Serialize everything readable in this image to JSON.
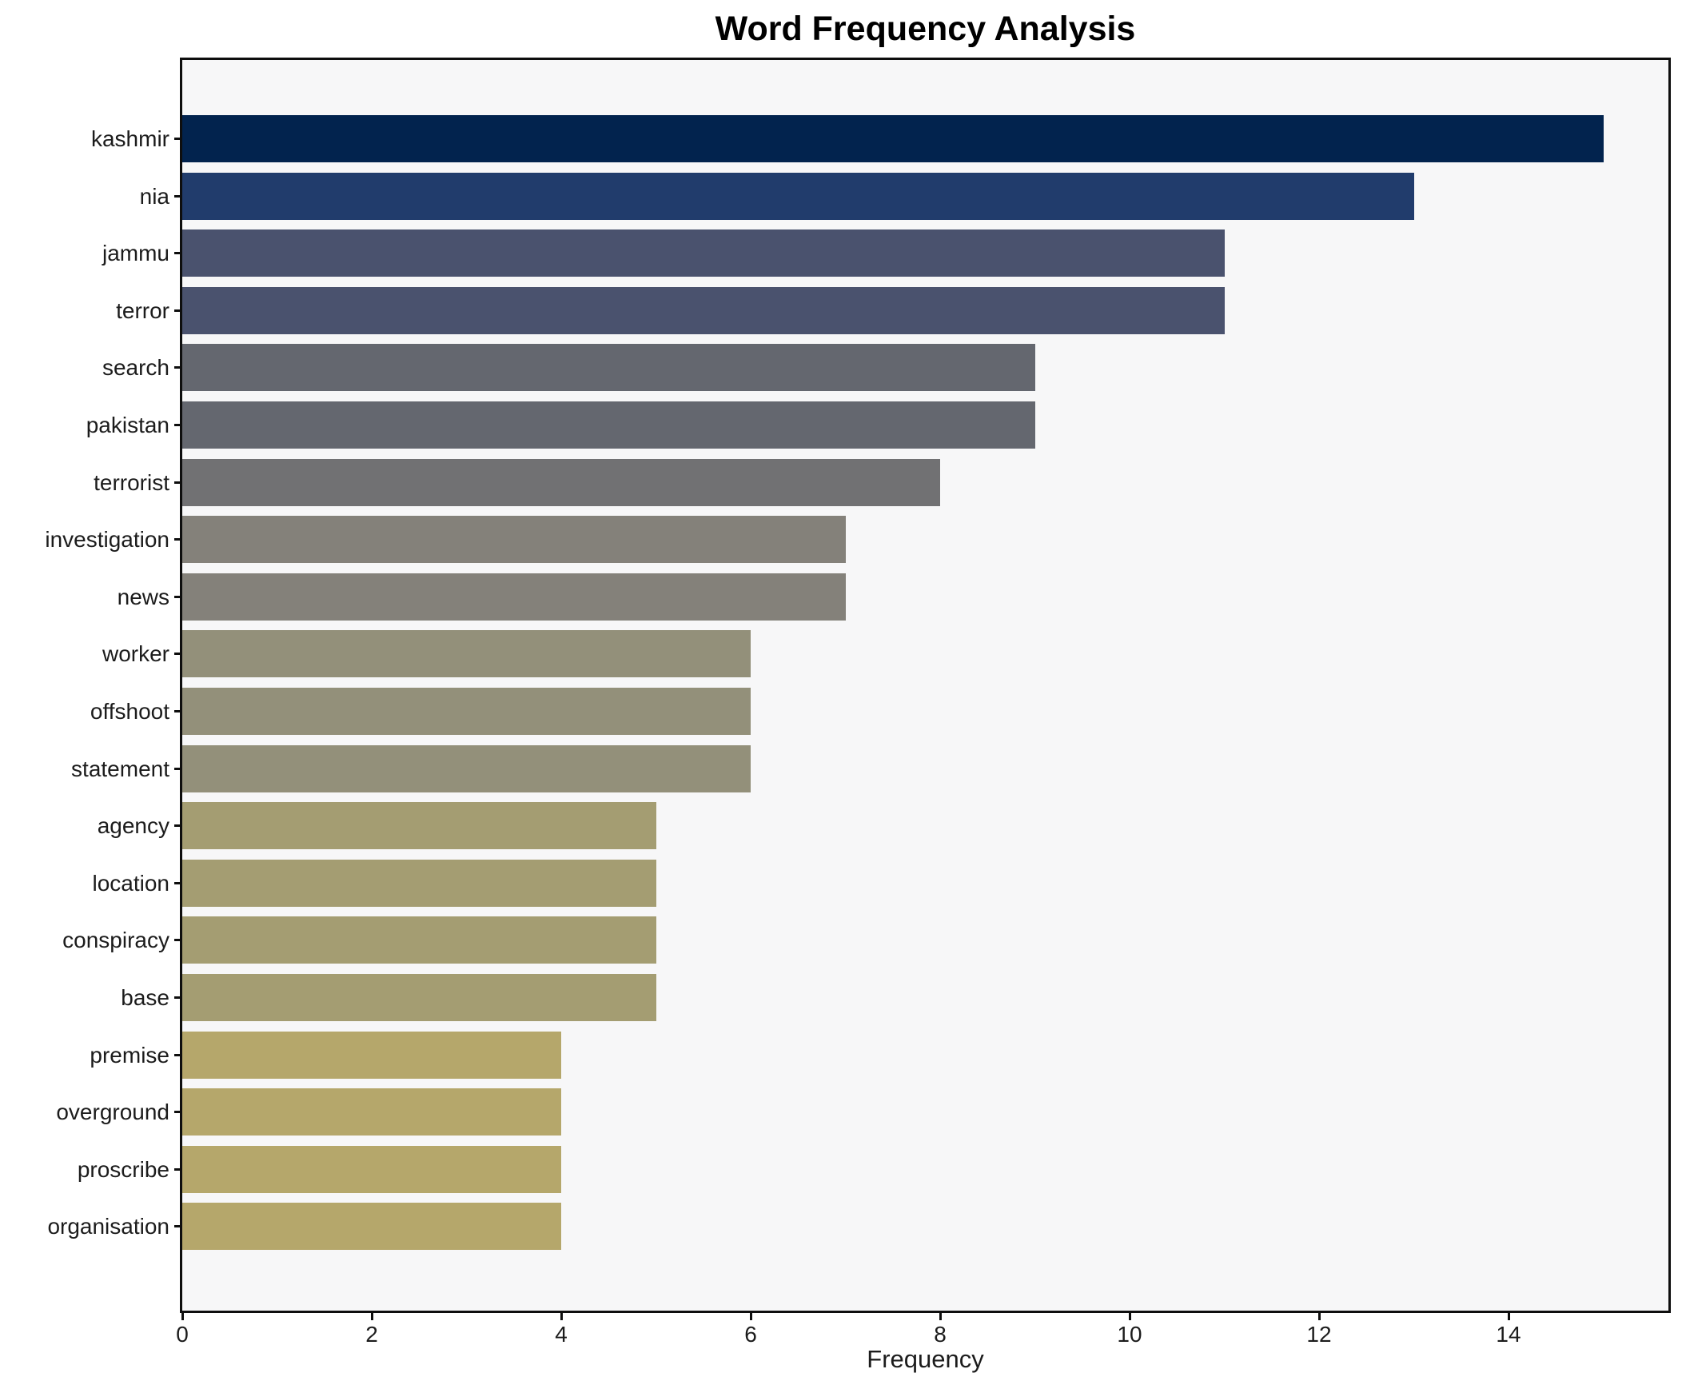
{
  "chart_data": {
    "type": "bar",
    "orientation": "horizontal",
    "title": "Word Frequency Analysis",
    "xlabel": "Frequency",
    "ylabel": "",
    "categories": [
      "kashmir",
      "nia",
      "jammu",
      "terror",
      "search",
      "pakistan",
      "terrorist",
      "investigation",
      "news",
      "worker",
      "offshoot",
      "statement",
      "agency",
      "location",
      "conspiracy",
      "base",
      "premise",
      "overground",
      "proscribe",
      "organisation"
    ],
    "values": [
      15,
      13,
      11,
      11,
      9,
      9,
      8,
      7,
      7,
      6,
      6,
      6,
      5,
      5,
      5,
      5,
      4,
      4,
      4,
      4
    ],
    "bar_colors": [
      "#02234e",
      "#213c6c",
      "#4a526e",
      "#4a526e",
      "#64676f",
      "#64676f",
      "#717173",
      "#84817a",
      "#84817a",
      "#93907a",
      "#93907a",
      "#93907a",
      "#a49d72",
      "#a49d72",
      "#a49d72",
      "#a49d72",
      "#b5a76b",
      "#b5a76b",
      "#b5a76b",
      "#b5a76b"
    ],
    "xticks": [
      0,
      2,
      4,
      6,
      8,
      10,
      12,
      14
    ],
    "xlim": [
      0,
      15.74
    ],
    "grid": false,
    "legend_position": "none",
    "plot_background": "#f7f7f8",
    "figure_background": "#ffffff",
    "spine_color": "#0e0e0e",
    "text_color": "#1c1c1c"
  }
}
